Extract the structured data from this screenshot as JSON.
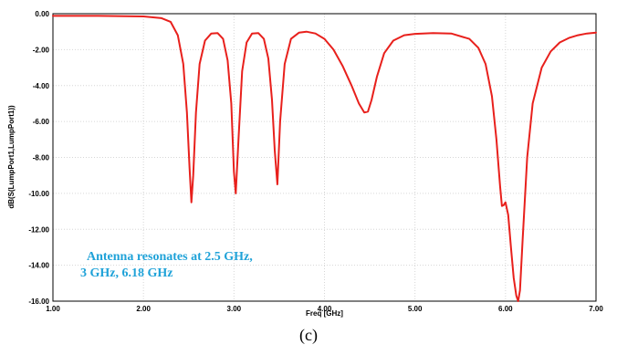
{
  "chart_data": {
    "type": "line",
    "xlabel": "Freq [GHz]",
    "ylabel": "dB(S(LumpPort1,LumpPort1))",
    "xlim": [
      1.0,
      7.0
    ],
    "ylim": [
      -16.0,
      0.0
    ],
    "x_ticks": [
      "1.00",
      "2.00",
      "3.00",
      "4.00",
      "5.00",
      "6.00",
      "7.00"
    ],
    "y_ticks": [
      "0.00",
      "-2.00",
      "-4.00",
      "-6.00",
      "-8.00",
      "-10.00",
      "-12.00",
      "-14.00",
      "-16.00"
    ],
    "grid": true,
    "line_color": "#e8201c",
    "annotation": [
      "Antenna resonates at 2.5 GHz,",
      "3 GHz, 6.18 GHz"
    ],
    "annotation_color": "#1fa2d8",
    "series": [
      {
        "x": [
          1.0,
          1.5,
          2.0,
          2.2,
          2.3,
          2.38,
          2.44,
          2.48,
          2.51,
          2.53,
          2.55,
          2.58,
          2.62,
          2.68,
          2.75,
          2.82,
          2.88,
          2.93,
          2.97,
          3.0,
          3.02,
          3.05,
          3.09,
          3.14,
          3.2,
          3.27,
          3.33,
          3.38,
          3.42,
          3.45,
          3.48,
          3.51,
          3.56,
          3.63,
          3.72,
          3.8,
          3.9,
          4.0,
          4.1,
          4.2,
          4.3,
          4.38,
          4.44,
          4.48,
          4.52,
          4.58,
          4.66,
          4.76,
          4.88,
          5.0,
          5.2,
          5.4,
          5.6,
          5.7,
          5.78,
          5.85,
          5.9,
          5.94,
          5.96,
          5.98,
          6.0,
          6.03,
          6.06,
          6.09,
          6.12,
          6.14,
          6.16,
          6.19,
          6.24,
          6.3,
          6.4,
          6.5,
          6.6,
          6.7,
          6.8,
          6.9,
          7.0
        ],
        "y": [
          -0.12,
          -0.12,
          -0.15,
          -0.25,
          -0.45,
          -1.2,
          -2.8,
          -5.5,
          -8.6,
          -10.5,
          -9.0,
          -5.5,
          -2.8,
          -1.5,
          -1.1,
          -1.08,
          -1.4,
          -2.6,
          -5.0,
          -8.8,
          -10.0,
          -7.0,
          -3.2,
          -1.6,
          -1.1,
          -1.08,
          -1.4,
          -2.5,
          -4.8,
          -7.6,
          -9.5,
          -6.0,
          -2.8,
          -1.4,
          -1.05,
          -1.0,
          -1.1,
          -1.4,
          -2.0,
          -2.9,
          -4.0,
          -5.0,
          -5.5,
          -5.45,
          -4.8,
          -3.5,
          -2.2,
          -1.5,
          -1.2,
          -1.12,
          -1.08,
          -1.1,
          -1.4,
          -1.9,
          -2.8,
          -4.6,
          -7.0,
          -9.6,
          -10.7,
          -10.65,
          -10.5,
          -11.2,
          -13.0,
          -14.7,
          -15.7,
          -16.0,
          -15.4,
          -12.5,
          -8.0,
          -5.0,
          -3.0,
          -2.1,
          -1.6,
          -1.35,
          -1.2,
          -1.1,
          -1.05
        ]
      }
    ]
  },
  "caption": "(c)"
}
